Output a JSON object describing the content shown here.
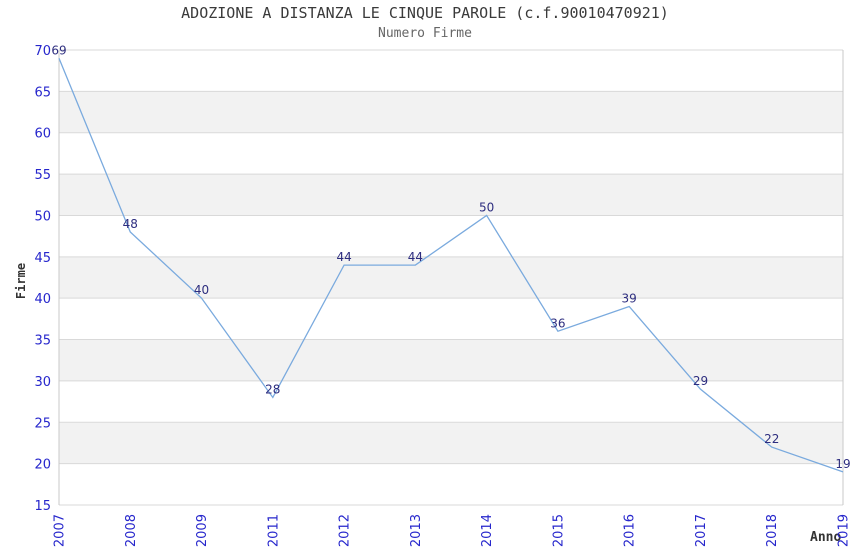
{
  "chart_data": {
    "type": "line",
    "title": "ADOZIONE A DISTANZA LE CINQUE PAROLE (c.f.90010470921)",
    "subtitle": "Numero Firme",
    "xlabel": "Anno",
    "ylabel": "Firme",
    "categories": [
      "2007",
      "2008",
      "2009",
      "2011",
      "2012",
      "2013",
      "2014",
      "2015",
      "2016",
      "2017",
      "2018",
      "2019"
    ],
    "values": [
      69,
      48,
      40,
      28,
      44,
      44,
      50,
      36,
      39,
      29,
      22,
      19
    ],
    "ylim": [
      15,
      70
    ],
    "ytick_step": 5,
    "ytick_labels": [
      "15",
      "20",
      "25",
      "30",
      "35",
      "40",
      "45",
      "50",
      "55",
      "60",
      "65",
      "70"
    ],
    "grid": "horizontal-bands",
    "legend": "none",
    "show_data_labels": true,
    "colors": {
      "line": "#7aaade",
      "data_label": "#2d2d7f",
      "tick_label": "#2626cc",
      "band_gray": "#f2f2f2",
      "gridline": "#d9d9d9",
      "plot_border": "#c9c9c9",
      "title": "#3a3a3a",
      "subtitle": "#666666",
      "axis_title": "#333333",
      "background": "#ffffff"
    }
  }
}
